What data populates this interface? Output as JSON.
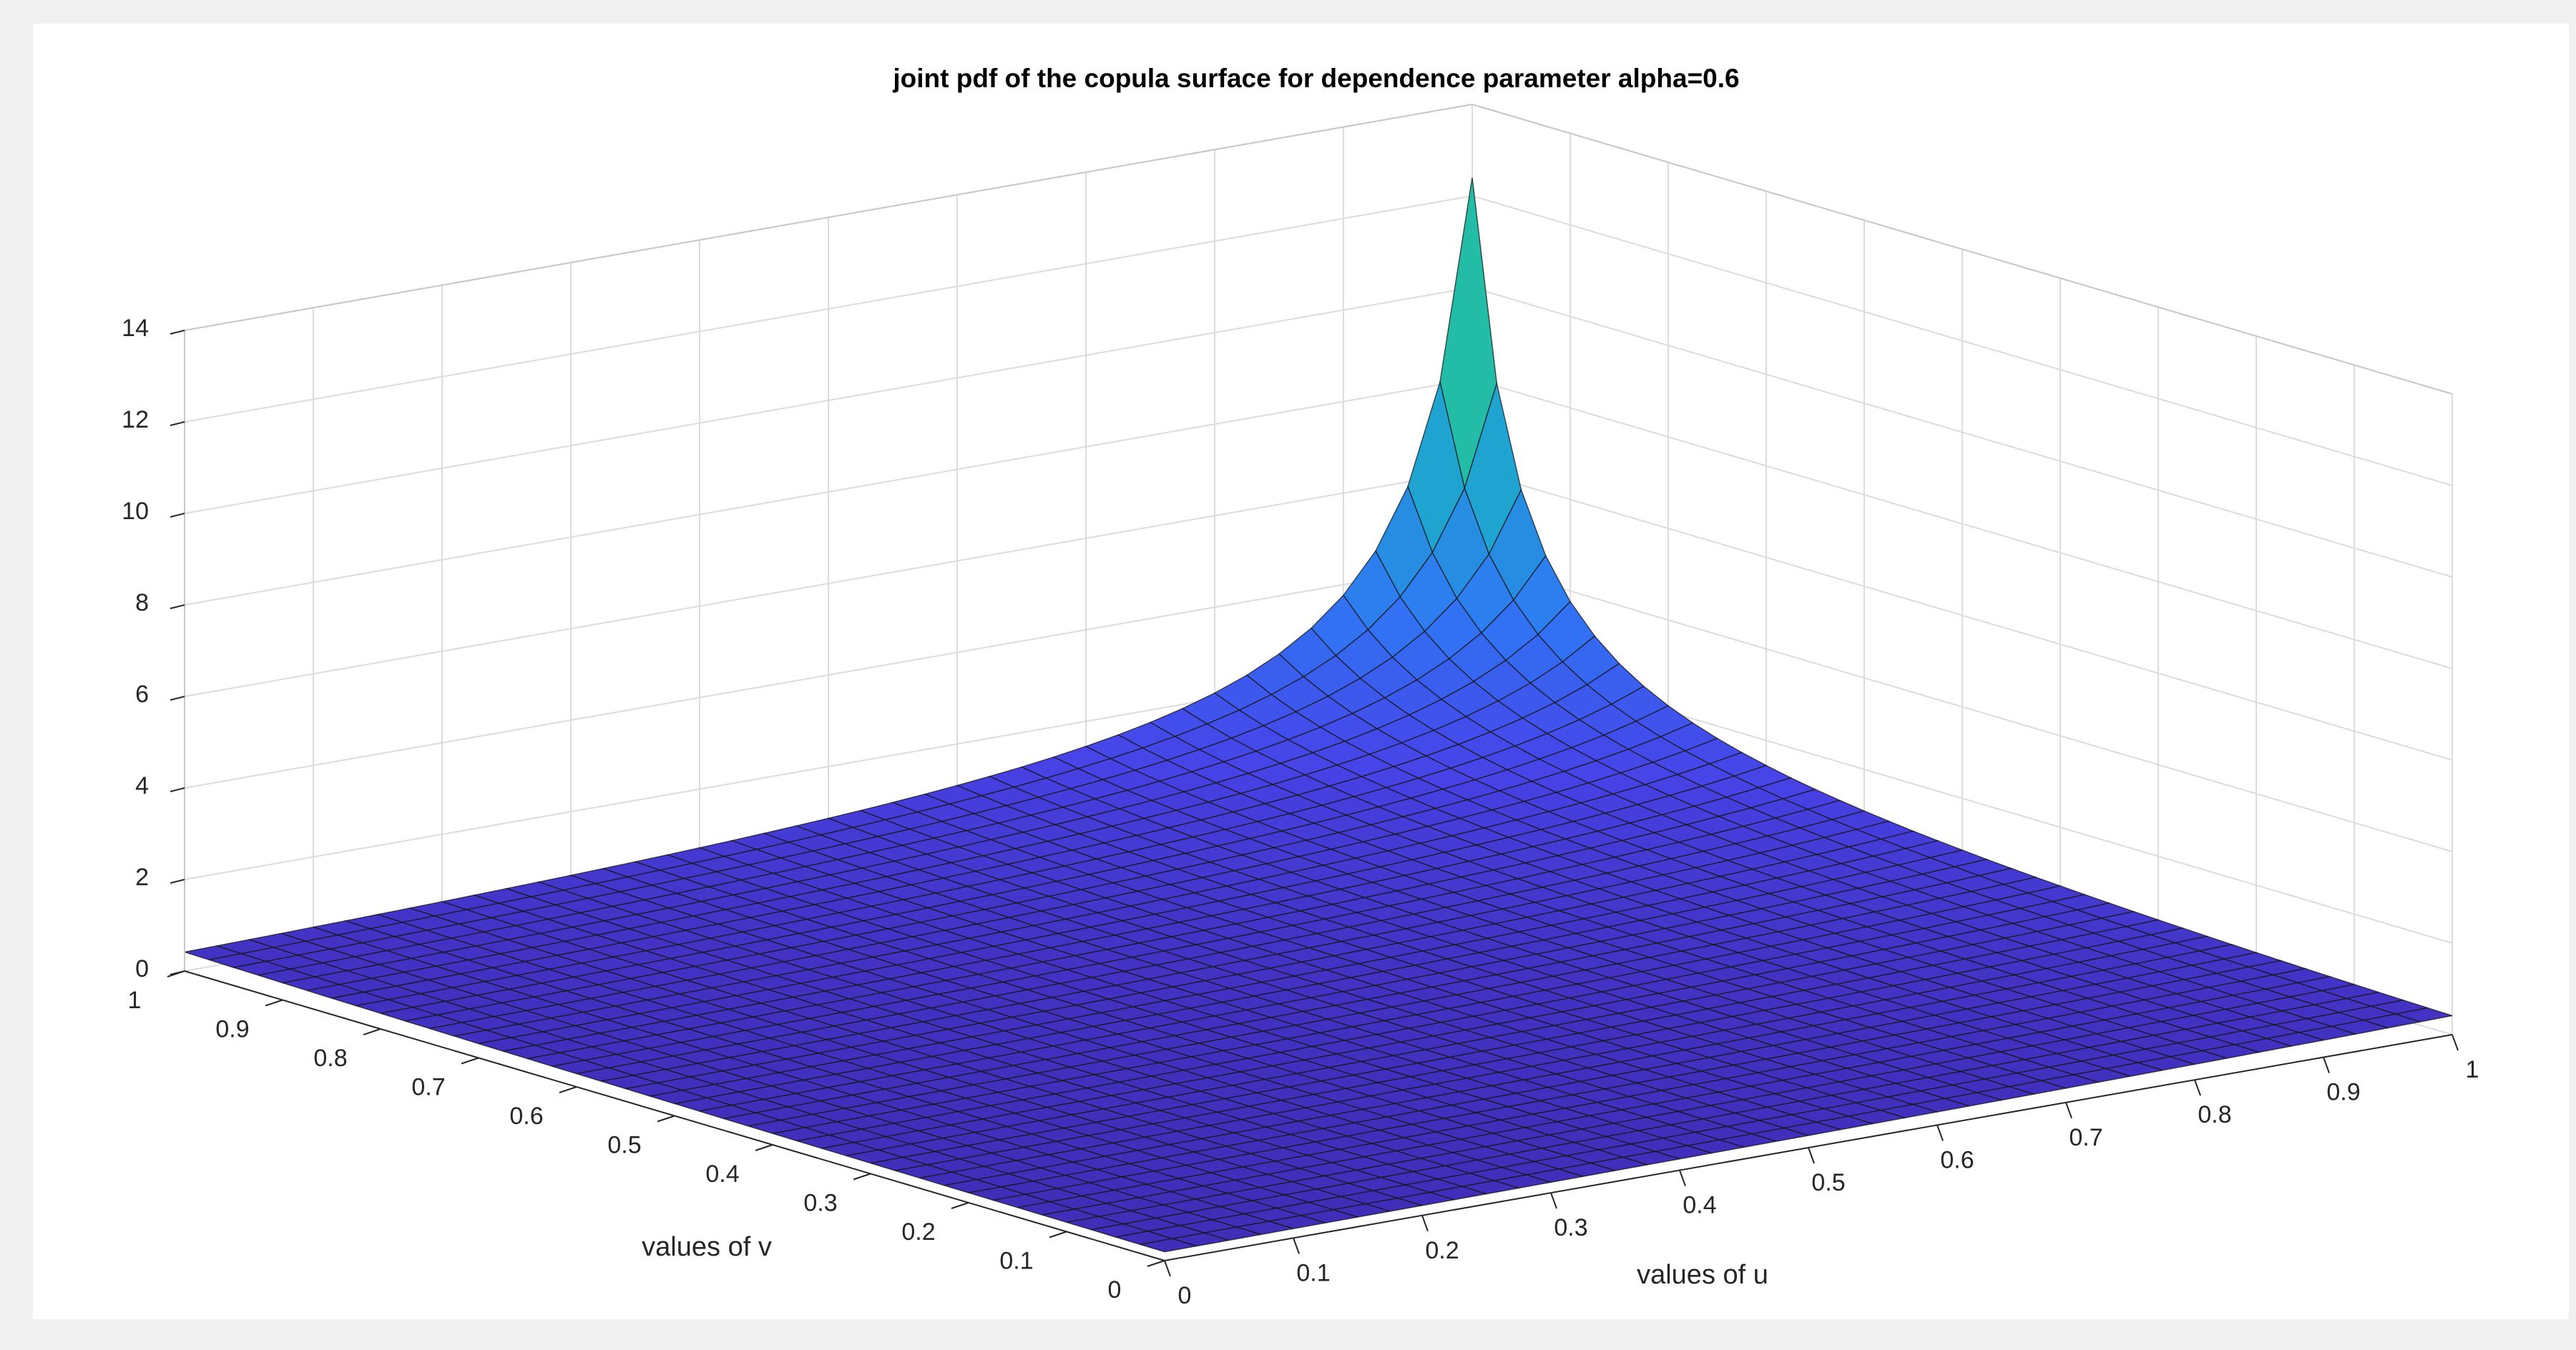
{
  "chart_data": {
    "type": "surface",
    "title": "joint pdf of the copula surface for dependence parameter alpha=0.6",
    "xlabel": "values of u",
    "ylabel": "values of v",
    "zlabel": "",
    "xlim": [
      0,
      1
    ],
    "ylim": [
      0,
      1
    ],
    "zlim": [
      0,
      14
    ],
    "x_ticks": [
      "0",
      "0.1",
      "0.2",
      "0.3",
      "0.4",
      "0.5",
      "0.6",
      "0.7",
      "0.8",
      "0.9",
      "1"
    ],
    "y_ticks": [
      "0",
      "0.1",
      "0.2",
      "0.3",
      "0.4",
      "0.5",
      "0.6",
      "0.7",
      "0.8",
      "0.9",
      "1"
    ],
    "z_ticks": [
      "0",
      "2",
      "4",
      "6",
      "8",
      "10",
      "12",
      "14"
    ],
    "grid": true,
    "grid_resolution": 40,
    "dependence_parameter_alpha": 0.6,
    "peak": {
      "u": 1,
      "v": 1,
      "z": 12.4
    },
    "colormap": [
      "#3e26a8",
      "#4743e8",
      "#2f77f4",
      "#1fa4d2",
      "#22c09f",
      "#6bc85e"
    ]
  }
}
